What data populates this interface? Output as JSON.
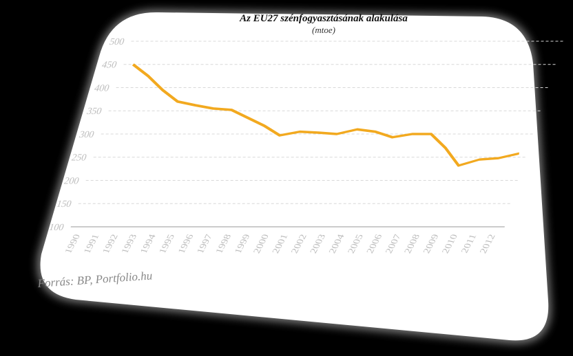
{
  "chart_data": {
    "type": "line",
    "title": "Az EU27 szénfogyasztásának alakulása",
    "subtitle": "(mtoe)",
    "source": "Forrás: BP, Portfolio.hu",
    "categories": [
      "1990",
      "1991",
      "1992",
      "1993",
      "1994",
      "1995",
      "1996",
      "1997",
      "1998",
      "1999",
      "2000",
      "2001",
      "2002",
      "2003",
      "2004",
      "2005",
      "2006",
      "2007",
      "2008",
      "2009",
      "2010",
      "2011",
      "2012"
    ],
    "series": [
      {
        "name": "EU27",
        "color": "#f2a91f",
        "values": [
          450,
          425,
          395,
          370,
          362,
          355,
          352,
          335,
          318,
          297,
          305,
          303,
          300,
          310,
          305,
          293,
          300,
          300,
          270,
          232,
          245,
          248,
          258
        ]
      }
    ],
    "ylim": [
      100,
      500
    ],
    "yticks": [
      100,
      150,
      200,
      250,
      300,
      350,
      400,
      450,
      500
    ],
    "grid": true
  }
}
